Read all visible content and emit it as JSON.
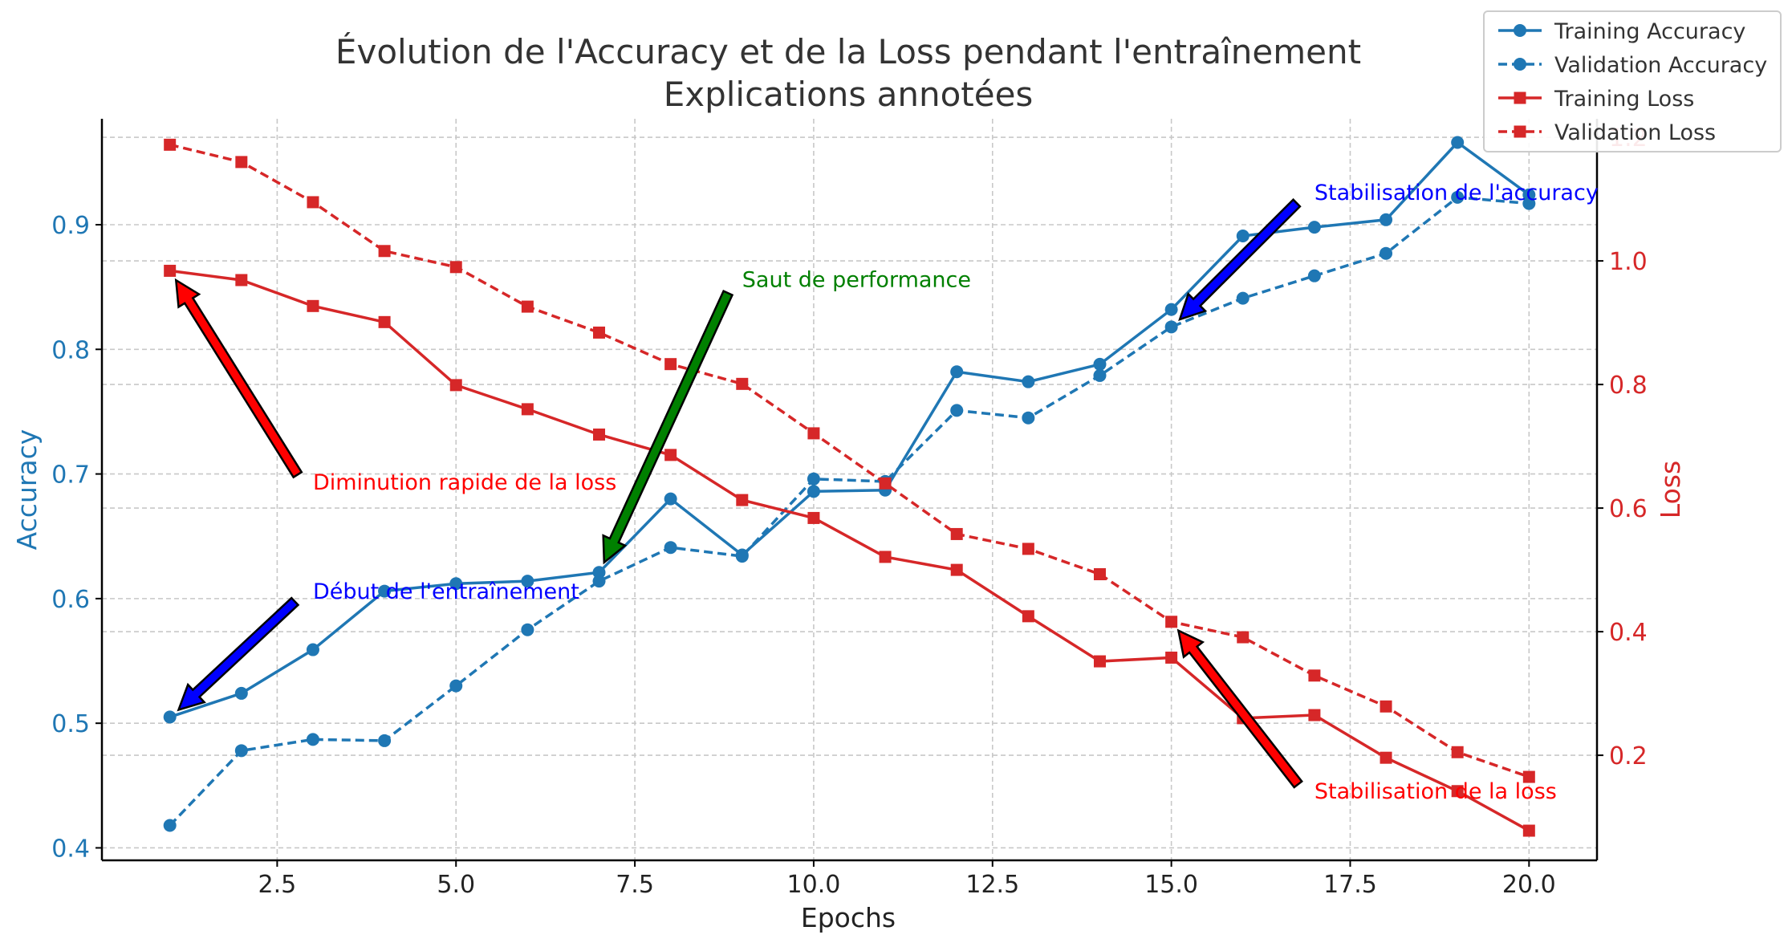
{
  "chart_data": {
    "type": "line",
    "title": "Évolution de l'Accuracy et de la Loss pendant l'entraînement",
    "subtitle": "Explications annotées",
    "xlabel": "Epochs",
    "ylabel_left": "Accuracy",
    "ylabel_right": "Loss",
    "xlim": [
      0.05,
      20.95
    ],
    "ylim_left": [
      0.39,
      0.985
    ],
    "ylim_right": [
      0.03,
      1.23
    ],
    "x_ticks": [
      2.5,
      5.0,
      7.5,
      10.0,
      12.5,
      15.0,
      17.5,
      20.0
    ],
    "x_tick_labels": [
      "2.5",
      "5.0",
      "7.5",
      "10.0",
      "12.5",
      "15.0",
      "17.5",
      "20.0"
    ],
    "y_left_ticks": [
      0.4,
      0.5,
      0.6,
      0.7,
      0.8,
      0.9
    ],
    "y_left_tick_labels": [
      "0.4",
      "0.5",
      "0.6",
      "0.7",
      "0.8",
      "0.9"
    ],
    "y_right_ticks": [
      0.2,
      0.4,
      0.6,
      0.8,
      1.0,
      1.2
    ],
    "y_right_tick_labels": [
      "0.2",
      "0.4",
      "0.6",
      "0.8",
      "1.0",
      "1.2"
    ],
    "grid": true,
    "legend_position": "top-right",
    "x": [
      1,
      2,
      3,
      4,
      5,
      6,
      7,
      8,
      9,
      10,
      11,
      12,
      13,
      14,
      15,
      16,
      17,
      18,
      19,
      20
    ],
    "series": [
      {
        "name": "Training Accuracy",
        "axis": "left",
        "color": "#1f77b4",
        "dashed": false,
        "marker": "circle",
        "values": [
          0.505,
          0.524,
          0.559,
          0.606,
          0.612,
          0.614,
          0.621,
          0.68,
          0.635,
          0.686,
          0.687,
          0.782,
          0.774,
          0.788,
          0.832,
          0.891,
          0.898,
          0.904,
          0.966,
          0.924
        ]
      },
      {
        "name": "Validation Accuracy",
        "axis": "left",
        "color": "#1f77b4",
        "dashed": true,
        "marker": "circle",
        "values": [
          0.418,
          0.478,
          0.487,
          0.486,
          0.53,
          0.575,
          0.614,
          0.641,
          0.634,
          0.696,
          0.694,
          0.751,
          0.745,
          0.779,
          0.818,
          0.841,
          0.859,
          0.877,
          0.922,
          0.917
        ]
      },
      {
        "name": "Training Loss",
        "axis": "right",
        "color": "#d62728",
        "dashed": false,
        "marker": "square",
        "values": [
          0.984,
          0.969,
          0.927,
          0.901,
          0.799,
          0.76,
          0.719,
          0.686,
          0.613,
          0.584,
          0.521,
          0.5,
          0.425,
          0.352,
          0.358,
          0.26,
          0.265,
          0.196,
          0.142,
          0.078
        ]
      },
      {
        "name": "Validation Loss",
        "axis": "right",
        "color": "#d62728",
        "dashed": true,
        "marker": "square",
        "values": [
          1.188,
          1.16,
          1.095,
          1.016,
          0.99,
          0.926,
          0.884,
          0.833,
          0.801,
          0.721,
          0.64,
          0.558,
          0.534,
          0.493,
          0.416,
          0.391,
          0.329,
          0.279,
          0.205,
          0.165
        ]
      }
    ],
    "annotations": [
      {
        "text": "Début de l'entraînement",
        "color": "#0000ff",
        "arrow_color": "#0000ff",
        "axis": "left",
        "xy": [
          1,
          0.505
        ],
        "xytext": [
          3,
          0.6
        ]
      },
      {
        "text": "Diminution rapide de la loss",
        "color": "#ff0000",
        "arrow_color": "#ff0000",
        "axis": "right",
        "xy": [
          1,
          0.984
        ],
        "xytext": [
          3,
          0.63
        ]
      },
      {
        "text": "Saut de performance",
        "color": "#008000",
        "arrow_color": "#008000",
        "axis": "left",
        "xy": [
          7,
          0.621
        ],
        "xytext": [
          9,
          0.85
        ]
      },
      {
        "text": "Stabilisation de l'accuracy",
        "color": "#0000ff",
        "arrow_color": "#0000ff",
        "axis": "left",
        "xy": [
          15,
          0.818
        ],
        "xytext": [
          17,
          0.92
        ]
      },
      {
        "text": "Stabilisation de la loss",
        "color": "#ff0000",
        "arrow_color": "#ff0000",
        "axis": "right",
        "xy": [
          15,
          0.416
        ],
        "xytext": [
          17,
          0.13
        ]
      }
    ],
    "left_axis_color": "#1f77b4",
    "right_axis_color": "#d62728"
  }
}
